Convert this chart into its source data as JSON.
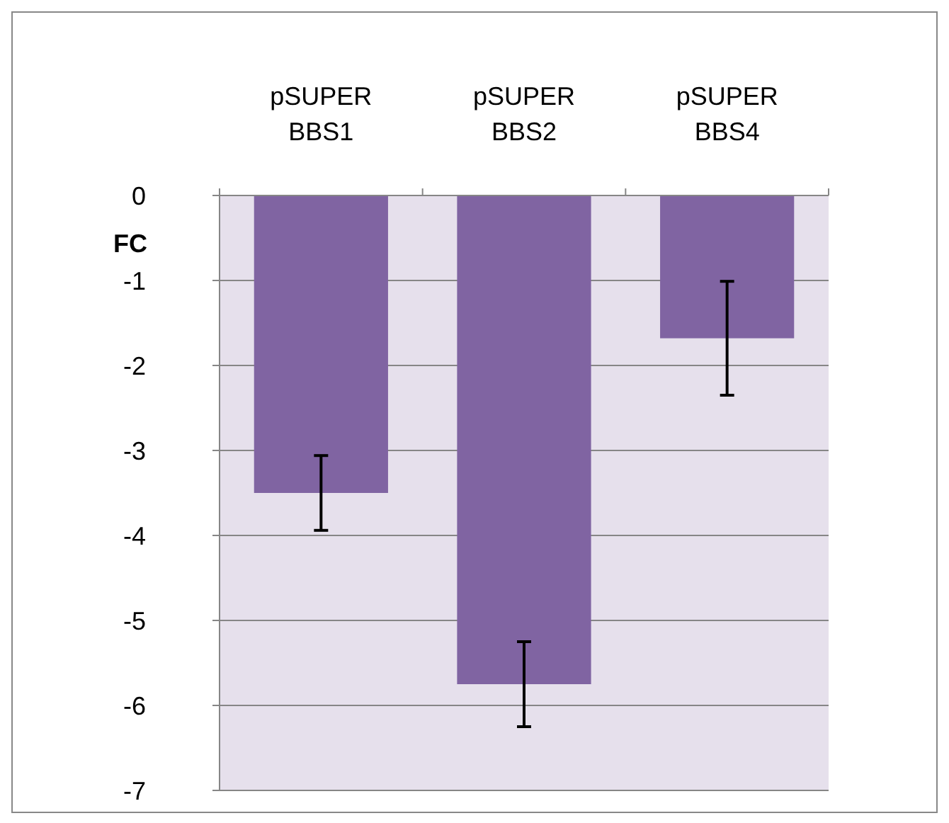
{
  "chart_data": {
    "type": "bar",
    "ylabel": "FC",
    "categories": [
      "pSUPER BBS1",
      "pSUPER BBS2",
      "pSUPER BBS4"
    ],
    "values": [
      -3.5,
      -5.75,
      -1.68
    ],
    "errors": [
      0.44,
      0.5,
      0.67
    ],
    "color": "#8064a2",
    "ylim": [
      -7,
      0
    ],
    "yticks": [
      -7,
      -6,
      -5,
      -4,
      -3,
      -2,
      -1,
      0
    ],
    "grid": "y"
  }
}
